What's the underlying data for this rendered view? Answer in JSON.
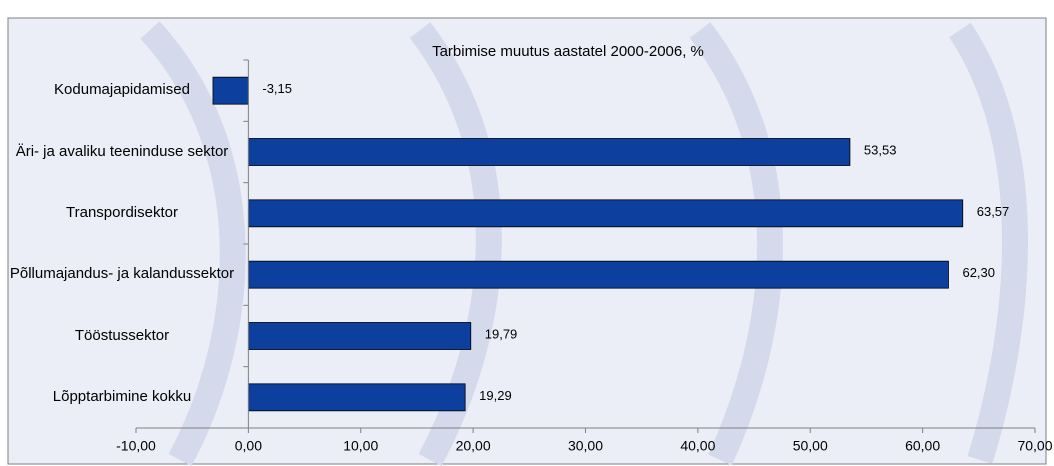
{
  "chart_data": {
    "type": "barh",
    "title": "Tarbimise muutus aastatel 2000-2006, %",
    "categories": [
      "Kodumajapidamised",
      "Äri- ja avaliku teeninduse sektor",
      "Transpordisektor",
      "Põllumajandus- ja kalandussektor",
      "Tööstussektor",
      "Lõpptarbimine kokku"
    ],
    "values": [
      -3.15,
      53.53,
      63.57,
      62.3,
      19.79,
      19.29
    ],
    "value_labels": [
      "-3,15",
      "53,53",
      "63,57",
      "62,30",
      "19,79",
      "19,29"
    ],
    "color": "#0d3f9f",
    "xlim": [
      -10,
      70
    ],
    "xticks": [
      {
        "value": -10,
        "label": "-10,00"
      },
      {
        "value": 0,
        "label": "0,00"
      },
      {
        "value": 10,
        "label": "10,00"
      },
      {
        "value": 20,
        "label": "20,00"
      },
      {
        "value": 30,
        "label": "30,00"
      },
      {
        "value": 40,
        "label": "40,00"
      },
      {
        "value": 50,
        "label": "50,00"
      },
      {
        "value": 60,
        "label": "60,00"
      },
      {
        "value": 70,
        "label": "70,00"
      }
    ]
  }
}
